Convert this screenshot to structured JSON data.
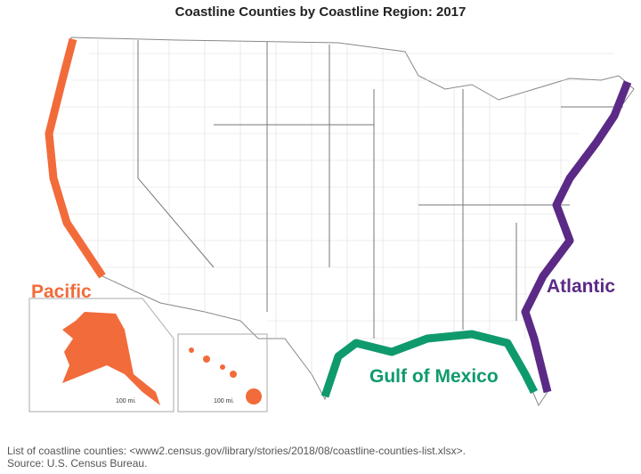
{
  "title": "Coastline Counties by Coastline Region: 2017",
  "regions": [
    {
      "label": "Pacific",
      "color": "#f26b3a"
    },
    {
      "label": "Atlantic",
      "color": "#5b2a86"
    },
    {
      "label": "Gulf of Mexico",
      "color": "#0f9a6e"
    }
  ],
  "scale_labels": [
    "100 mi.",
    "100 mi."
  ],
  "footnote": {
    "list": "List of coastline counties: <www2.census.gov/library/stories/2018/08/coastline-counties-list.xlsx>.",
    "source": "Source: U.S. Census Bureau."
  }
}
